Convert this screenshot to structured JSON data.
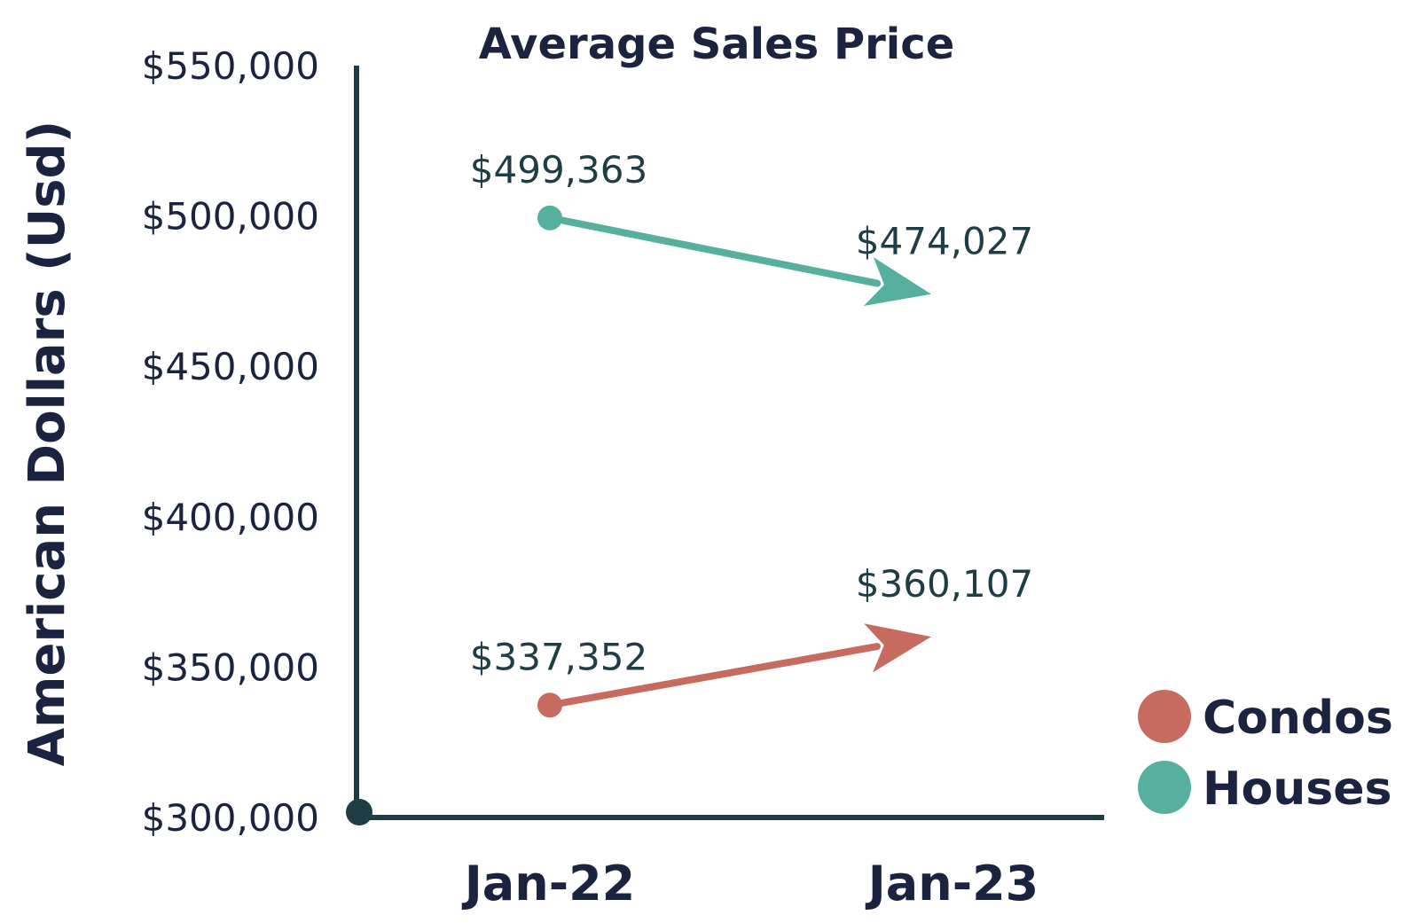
{
  "chart_data": {
    "type": "line",
    "title": "Average Sales Price",
    "ylabel": "American Dollars (Usd)",
    "xlabel": "",
    "categories": [
      "Jan-22",
      "Jan-23"
    ],
    "ylim": [
      300000,
      550000
    ],
    "yticks": [
      300000,
      350000,
      400000,
      450000,
      500000,
      550000
    ],
    "ytick_labels": [
      "$300,000",
      "$350,000",
      "$400,000",
      "$450,000",
      "$500,000",
      "$550,000"
    ],
    "grid": false,
    "legend_position": "bottom-right",
    "series": [
      {
        "name": "Condos",
        "values": [
          337352,
          360107
        ],
        "labels": [
          "$337,352",
          "$360,107"
        ],
        "color": "#c76b61"
      },
      {
        "name": "Houses",
        "values": [
          499363,
          474027
        ],
        "labels": [
          "$499,363",
          "$474,027"
        ],
        "color": "#55b09d"
      }
    ]
  },
  "colors": {
    "axis": "#1f3d44",
    "text": "#1c2340",
    "data_label": "#1f3d44"
  }
}
